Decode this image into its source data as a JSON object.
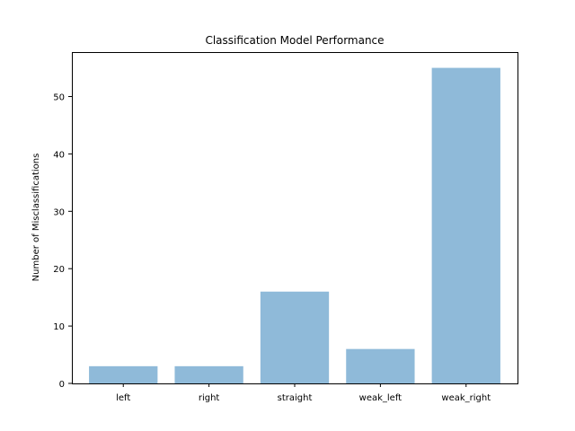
{
  "chart_data": {
    "type": "bar",
    "title": "Classification Model Performance",
    "xlabel": "",
    "ylabel": "Number of Misclassifications",
    "categories": [
      "left",
      "right",
      "straight",
      "weak_left",
      "weak_right"
    ],
    "values": [
      3,
      3,
      16,
      6,
      55
    ],
    "ylim": [
      0,
      57.75
    ],
    "yticks": [
      0,
      10,
      20,
      30,
      40,
      50
    ],
    "grid": false,
    "bar_color": "#8fbad9"
  }
}
